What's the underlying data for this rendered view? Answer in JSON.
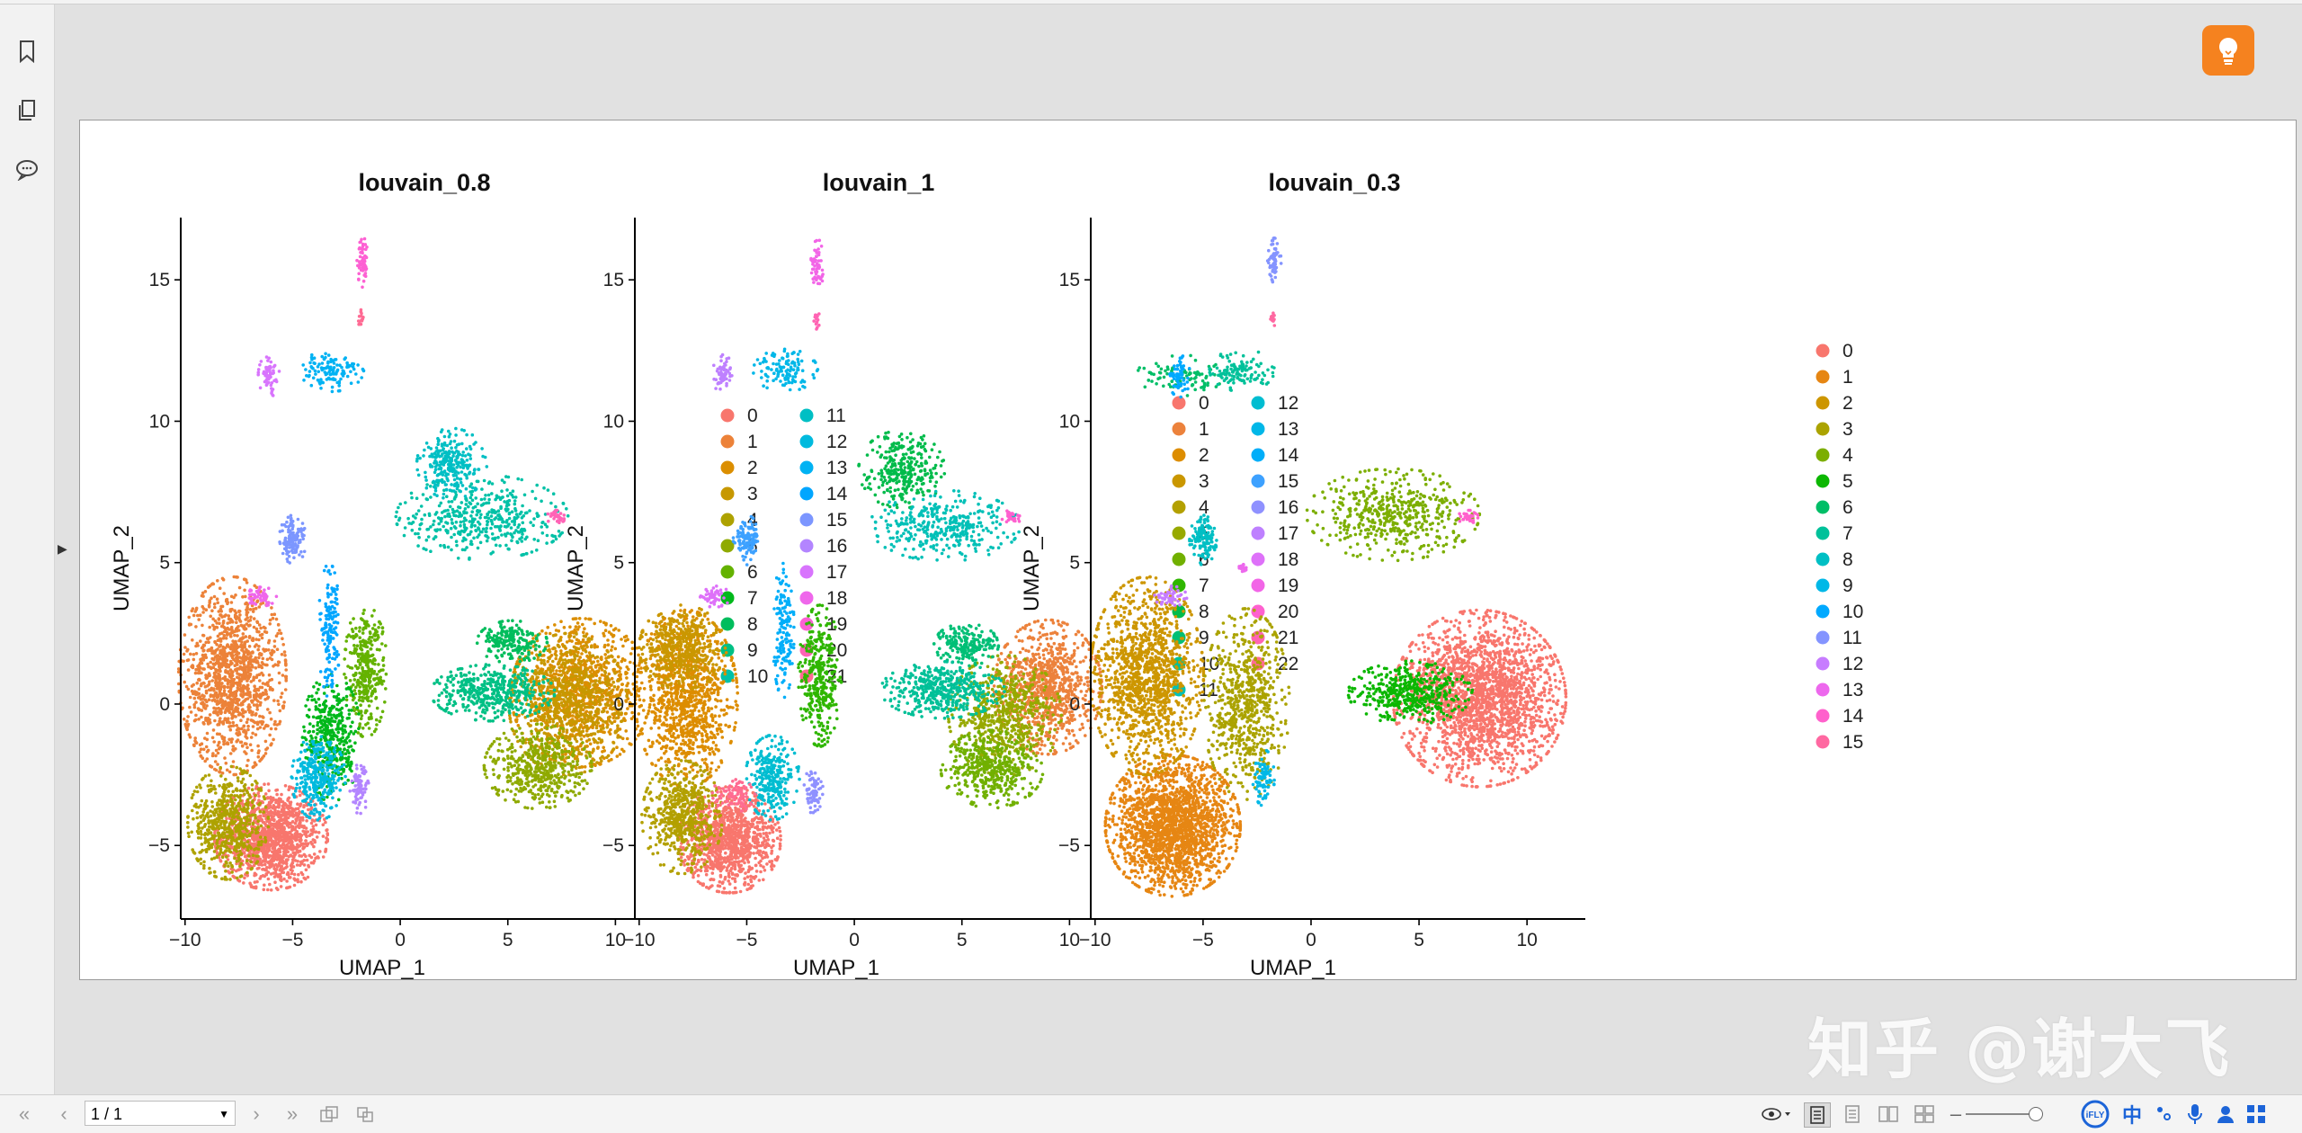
{
  "viewer": {
    "page_indicator": "1 / 1",
    "ime": {
      "iflytek": "iFLY",
      "lang": "中"
    }
  },
  "sidebar": {
    "icons": [
      "bookmark-icon",
      "pages-icon",
      "comment-icon"
    ]
  },
  "watermark": "知乎 @谢大飞",
  "colors": {
    "accent_orange": "#f5821f",
    "ime_blue": "#1c64d8"
  },
  "chart_data": [
    {
      "type": "scatter",
      "title": "louvain_0.8",
      "xlabel": "UMAP_1",
      "ylabel": "UMAP_2",
      "xlim": [
        -10.2,
        12.7
      ],
      "ylim": [
        -7.6,
        17.2
      ],
      "xticks": [
        -10,
        -5,
        0,
        5,
        10
      ],
      "yticks": [
        -5,
        0,
        5,
        10,
        15
      ],
      "grid": false,
      "legend_position": "right",
      "legend": [
        "0",
        "1",
        "2",
        "3",
        "4",
        "5",
        "6",
        "7",
        "8",
        "9",
        "10",
        "11",
        "12",
        "13",
        "14",
        "15",
        "16",
        "17",
        "18",
        "19",
        "20",
        "21"
      ],
      "clusters": [
        {
          "label": "0",
          "x": -6.0,
          "y": -4.7,
          "rx": 2.1,
          "ry": 1.5,
          "n": 1300
        },
        {
          "label": "1",
          "x": -7.8,
          "y": 1.0,
          "rx": 2.0,
          "ry": 2.8,
          "n": 1300
        },
        {
          "label": "2",
          "x": 8.4,
          "y": 0.4,
          "rx": 2.6,
          "ry": 2.1,
          "n": 1000
        },
        {
          "label": "3",
          "x": 7.8,
          "y": 0.0,
          "rx": 2.2,
          "ry": 2.0,
          "n": 700
        },
        {
          "label": "4",
          "x": -8.0,
          "y": -4.2,
          "rx": 1.5,
          "ry": 1.6,
          "n": 600
        },
        {
          "label": "5",
          "x": 6.4,
          "y": -2.2,
          "rx": 2.0,
          "ry": 1.2,
          "n": 500
        },
        {
          "label": "6",
          "x": -1.6,
          "y": 1.2,
          "rx": 0.8,
          "ry": 1.9,
          "n": 350
        },
        {
          "label": "7",
          "x": -3.2,
          "y": -1.2,
          "rx": 1.1,
          "ry": 1.8,
          "n": 400
        },
        {
          "label": "8",
          "x": 5.2,
          "y": 2.2,
          "rx": 1.3,
          "ry": 0.6,
          "n": 200
        },
        {
          "label": "9",
          "x": 4.3,
          "y": 0.4,
          "rx": 2.3,
          "ry": 0.8,
          "n": 450
        },
        {
          "label": "10",
          "x": 3.8,
          "y": 6.6,
          "rx": 3.2,
          "ry": 1.2,
          "n": 450
        },
        {
          "label": "11",
          "x": 2.4,
          "y": 8.5,
          "rx": 1.3,
          "ry": 1.0,
          "n": 250
        },
        {
          "label": "12",
          "x": -3.8,
          "y": -2.6,
          "rx": 1.0,
          "ry": 1.2,
          "n": 300
        },
        {
          "label": "13",
          "x": -3.2,
          "y": 11.8,
          "rx": 1.2,
          "ry": 0.6,
          "n": 120
        },
        {
          "label": "14",
          "x": -3.3,
          "y": 2.6,
          "rx": 0.4,
          "ry": 1.9,
          "n": 150
        },
        {
          "label": "15",
          "x": -5.0,
          "y": 5.8,
          "rx": 0.5,
          "ry": 0.7,
          "n": 120
        },
        {
          "label": "16",
          "x": -1.9,
          "y": -3.0,
          "rx": 0.35,
          "ry": 0.7,
          "n": 80
        },
        {
          "label": "17",
          "x": -6.1,
          "y": 11.6,
          "rx": 0.4,
          "ry": 0.6,
          "n": 60
        },
        {
          "label": "18",
          "x": -6.5,
          "y": 3.8,
          "rx": 0.6,
          "ry": 0.3,
          "n": 50
        },
        {
          "label": "19",
          "x": -1.7,
          "y": 15.6,
          "rx": 0.25,
          "ry": 0.7,
          "n": 60
        },
        {
          "label": "20",
          "x": 7.3,
          "y": 6.6,
          "rx": 0.4,
          "ry": 0.2,
          "n": 30
        },
        {
          "label": "21",
          "x": -1.8,
          "y": 13.6,
          "rx": 0.15,
          "ry": 0.3,
          "n": 15
        }
      ]
    },
    {
      "type": "scatter",
      "title": "louvain_1",
      "xlabel": "UMAP_1",
      "ylabel": "UMAP_2",
      "xlim": [
        -10.2,
        12.7
      ],
      "ylim": [
        -7.6,
        17.2
      ],
      "xticks": [
        -10,
        -5,
        0,
        5,
        10
      ],
      "yticks": [
        -5,
        0,
        5,
        10,
        15
      ],
      "grid": false,
      "legend_position": "right",
      "legend": [
        "0",
        "1",
        "2",
        "3",
        "4",
        "5",
        "6",
        "7",
        "8",
        "9",
        "10",
        "11",
        "12",
        "13",
        "14",
        "15",
        "16",
        "17",
        "18",
        "19",
        "20",
        "21",
        "22"
      ],
      "clusters": [
        {
          "label": "0",
          "x": -5.8,
          "y": -4.8,
          "rx": 1.9,
          "ry": 1.5,
          "n": 1100
        },
        {
          "label": "1",
          "x": 9.0,
          "y": 0.6,
          "rx": 2.0,
          "ry": 1.9,
          "n": 900
        },
        {
          "label": "2",
          "x": -7.8,
          "y": 0.2,
          "rx": 1.9,
          "ry": 2.5,
          "n": 1000
        },
        {
          "label": "3",
          "x": -8.0,
          "y": 2.0,
          "rx": 1.6,
          "ry": 1.2,
          "n": 500
        },
        {
          "label": "4",
          "x": -8.0,
          "y": -4.0,
          "rx": 1.5,
          "ry": 1.6,
          "n": 600
        },
        {
          "label": "5",
          "x": 7.0,
          "y": -0.4,
          "rx": 2.1,
          "ry": 1.7,
          "n": 600
        },
        {
          "label": "6",
          "x": 6.4,
          "y": -2.3,
          "rx": 1.9,
          "ry": 1.1,
          "n": 450
        },
        {
          "label": "7",
          "x": -1.6,
          "y": 1.0,
          "rx": 0.8,
          "ry": 2.0,
          "n": 350
        },
        {
          "label": "8",
          "x": 2.2,
          "y": 8.3,
          "rx": 1.6,
          "ry": 1.1,
          "n": 300
        },
        {
          "label": "9",
          "x": 5.2,
          "y": 2.1,
          "rx": 1.2,
          "ry": 0.6,
          "n": 200
        },
        {
          "label": "10",
          "x": 4.1,
          "y": 0.5,
          "rx": 2.3,
          "ry": 0.8,
          "n": 450
        },
        {
          "label": "11",
          "x": 4.2,
          "y": 6.3,
          "rx": 2.8,
          "ry": 1.0,
          "n": 350
        },
        {
          "label": "12",
          "x": -3.8,
          "y": -2.6,
          "rx": 1.0,
          "ry": 1.2,
          "n": 300
        },
        {
          "label": "13",
          "x": -3.2,
          "y": 11.8,
          "rx": 1.2,
          "ry": 0.6,
          "n": 120
        },
        {
          "label": "14",
          "x": -3.3,
          "y": 2.6,
          "rx": 0.4,
          "ry": 1.9,
          "n": 150
        },
        {
          "label": "15",
          "x": -5.0,
          "y": 5.8,
          "rx": 0.5,
          "ry": 0.7,
          "n": 120
        },
        {
          "label": "16",
          "x": -1.9,
          "y": -3.0,
          "rx": 0.35,
          "ry": 0.7,
          "n": 80
        },
        {
          "label": "17",
          "x": -6.1,
          "y": 11.6,
          "rx": 0.4,
          "ry": 0.6,
          "n": 60
        },
        {
          "label": "18",
          "x": -6.5,
          "y": 3.8,
          "rx": 0.6,
          "ry": 0.3,
          "n": 50
        },
        {
          "label": "19",
          "x": -1.7,
          "y": 15.6,
          "rx": 0.25,
          "ry": 0.7,
          "n": 60
        },
        {
          "label": "20",
          "x": 7.3,
          "y": 6.6,
          "rx": 0.4,
          "ry": 0.2,
          "n": 30
        },
        {
          "label": "21",
          "x": -1.8,
          "y": 13.6,
          "rx": 0.15,
          "ry": 0.3,
          "n": 15
        },
        {
          "label": "22",
          "x": -5.6,
          "y": -3.2,
          "rx": 0.8,
          "ry": 0.5,
          "n": 80
        }
      ]
    },
    {
      "type": "scatter",
      "title": "louvain_0.3",
      "xlabel": "UMAP_1",
      "ylabel": "UMAP_2",
      "xlim": [
        -10.2,
        12.7
      ],
      "ylim": [
        -7.6,
        17.2
      ],
      "xticks": [
        -10,
        -5,
        0,
        5,
        10
      ],
      "yticks": [
        -5,
        0,
        5,
        10,
        15
      ],
      "grid": false,
      "legend_position": "right",
      "legend": [
        "0",
        "1",
        "2",
        "3",
        "4",
        "5",
        "6",
        "7",
        "8",
        "9",
        "10",
        "11",
        "12",
        "13",
        "14",
        "15"
      ],
      "clusters": [
        {
          "label": "0",
          "x": 7.8,
          "y": 0.2,
          "rx": 3.2,
          "ry": 2.5,
          "n": 2200
        },
        {
          "label": "1",
          "x": -6.4,
          "y": -4.3,
          "rx": 2.5,
          "ry": 2.0,
          "n": 2000
        },
        {
          "label": "2",
          "x": -7.6,
          "y": 1.0,
          "rx": 2.1,
          "ry": 2.8,
          "n": 1300
        },
        {
          "label": "3",
          "x": -3.0,
          "y": 0.0,
          "rx": 1.6,
          "ry": 2.7,
          "n": 700
        },
        {
          "label": "4",
          "x": 3.8,
          "y": 6.7,
          "rx": 3.2,
          "ry": 1.3,
          "n": 500
        },
        {
          "label": "5",
          "x": 4.6,
          "y": 0.4,
          "rx": 2.3,
          "ry": 0.9,
          "n": 450
        },
        {
          "label": "6",
          "x": -6.1,
          "y": 11.6,
          "rx": 1.6,
          "ry": 0.6,
          "n": 100
        },
        {
          "label": "7",
          "x": -3.2,
          "y": 11.8,
          "rx": 1.2,
          "ry": 0.6,
          "n": 120
        },
        {
          "label": "8",
          "x": -5.0,
          "y": 5.8,
          "rx": 0.5,
          "ry": 0.7,
          "n": 120
        },
        {
          "label": "9",
          "x": -2.2,
          "y": -2.6,
          "rx": 0.4,
          "ry": 0.8,
          "n": 80
        },
        {
          "label": "10",
          "x": -6.1,
          "y": 11.6,
          "rx": 0.4,
          "ry": 0.6,
          "n": 60
        },
        {
          "label": "11",
          "x": -1.7,
          "y": 15.6,
          "rx": 0.25,
          "ry": 0.7,
          "n": 60
        },
        {
          "label": "12",
          "x": -6.5,
          "y": 3.8,
          "rx": 0.6,
          "ry": 0.3,
          "n": 50
        },
        {
          "label": "13",
          "x": -3.1,
          "y": 4.8,
          "rx": 0.2,
          "ry": 0.2,
          "n": 15
        },
        {
          "label": "14",
          "x": 7.3,
          "y": 6.6,
          "rx": 0.4,
          "ry": 0.2,
          "n": 30
        },
        {
          "label": "15",
          "x": -1.8,
          "y": 13.6,
          "rx": 0.15,
          "ry": 0.3,
          "n": 15
        }
      ]
    }
  ]
}
